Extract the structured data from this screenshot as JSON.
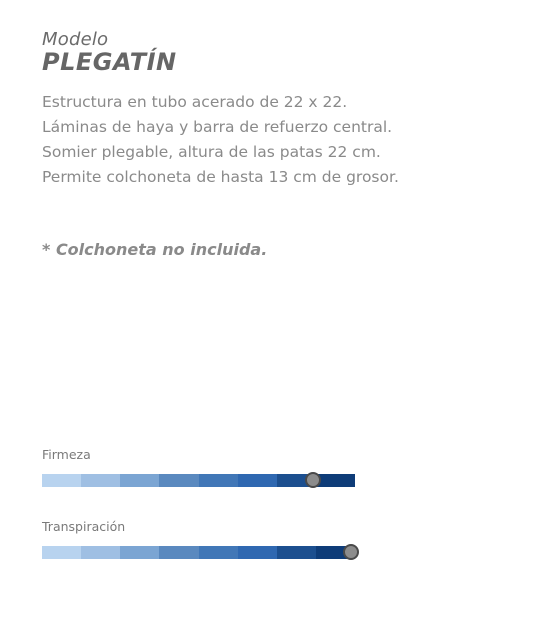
{
  "header": {
    "model_label": "Modelo",
    "model_name": "PLEGATÍN"
  },
  "description": {
    "lines": [
      "Estructura en tubo acerado de 22 x 22.",
      "Láminas de haya y barra de refuerzo central.",
      "Somier plegable, altura de las patas 22 cm.",
      "Permite colchoneta de hasta 13 cm de grosor."
    ]
  },
  "note": "* Colchoneta no incluida.",
  "ratings": [
    {
      "label": "Firmeza",
      "level": 0.875
    },
    {
      "label": "Transpiración",
      "level": 1.0
    }
  ],
  "scale_colors": [
    "#b8d3ef",
    "#9fbfe3",
    "#7ba5d3",
    "#5a89bf",
    "#4177b7",
    "#2f68b1",
    "#1c4f8f",
    "#0e3c78"
  ]
}
